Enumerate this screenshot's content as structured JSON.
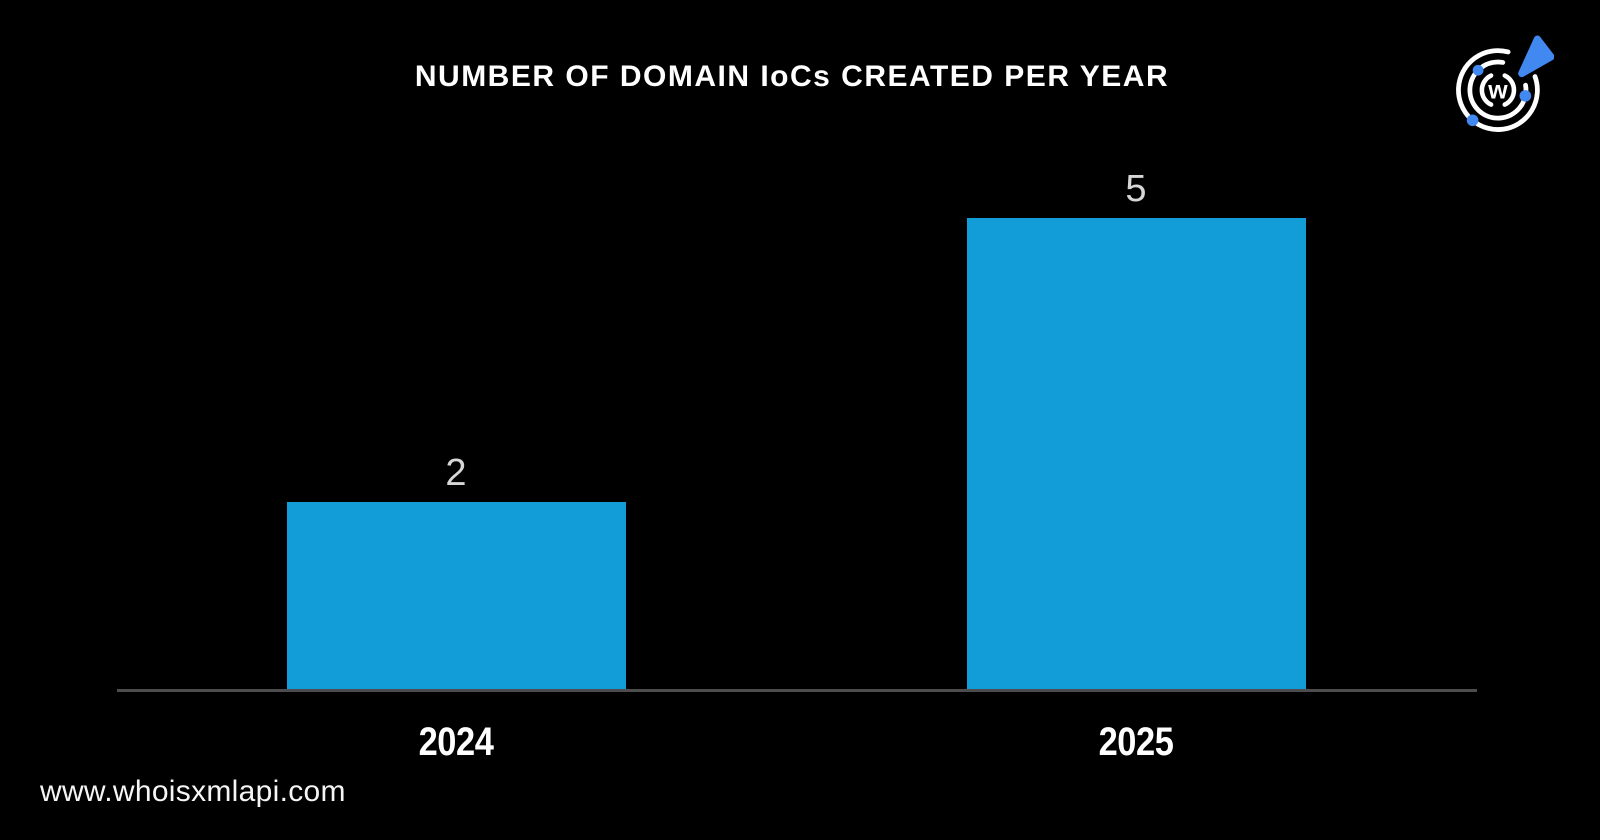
{
  "page": {
    "background_color": "#000000"
  },
  "header": {
    "title": "NUMBER OF DOMAIN IoCs CREATED PER YEAR"
  },
  "logo": {
    "brand": "WhoisXML API",
    "letter": "w",
    "ring_color": "#ffffff",
    "accent_color": "#4189f0"
  },
  "chart_data": {
    "type": "bar",
    "title": "NUMBER OF DOMAIN IoCs CREATED PER YEAR",
    "categories": [
      "2024",
      "2025"
    ],
    "values": [
      2,
      5
    ],
    "value_labels": [
      "2",
      "5"
    ],
    "xlabel": "",
    "ylabel": "",
    "ylim": [
      0,
      5
    ],
    "grid": false,
    "legend": false,
    "bar_color": "#129dd8",
    "value_label_color": "#d6d6d6",
    "axis_line_color": "#4d4d4d",
    "background_color": "#000000"
  },
  "footer": {
    "website": "www.whoisxmlapi.com"
  }
}
